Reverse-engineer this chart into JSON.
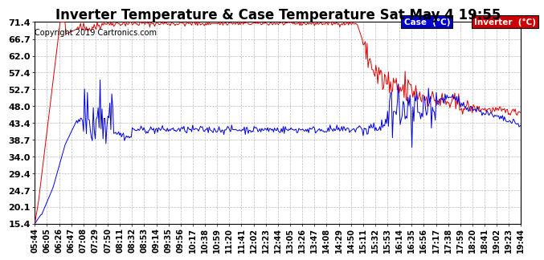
{
  "title": "Inverter Temperature & Case Temperature Sat May 4 19:55",
  "copyright": "Copyright 2019 Cartronics.com",
  "legend_case_label": "Case  (°C)",
  "legend_inv_label": "Inverter  (°C)",
  "case_color": "#0000dd",
  "inv_color": "#dd0000",
  "yticks": [
    15.4,
    20.1,
    24.7,
    29.4,
    34.0,
    38.7,
    43.4,
    48.0,
    52.7,
    57.4,
    62.0,
    66.7,
    71.4
  ],
  "ymin": 15.4,
  "ymax": 71.4,
  "background_color": "#ffffff",
  "grid_color": "#bbbbbb",
  "title_fontsize": 12,
  "copyright_fontsize": 7,
  "xtick_fontsize": 7,
  "ytick_fontsize": 8,
  "x_labels": [
    "05:44",
    "06:05",
    "06:26",
    "06:47",
    "07:08",
    "07:29",
    "07:50",
    "08:11",
    "08:32",
    "08:53",
    "09:14",
    "09:35",
    "09:56",
    "10:17",
    "10:38",
    "10:59",
    "11:20",
    "11:41",
    "12:02",
    "12:23",
    "12:44",
    "13:05",
    "13:26",
    "13:47",
    "14:08",
    "14:29",
    "14:50",
    "15:11",
    "15:32",
    "15:53",
    "16:14",
    "16:35",
    "16:56",
    "17:17",
    "17:38",
    "17:59",
    "18:20",
    "18:41",
    "19:02",
    "19:23",
    "19:44"
  ]
}
